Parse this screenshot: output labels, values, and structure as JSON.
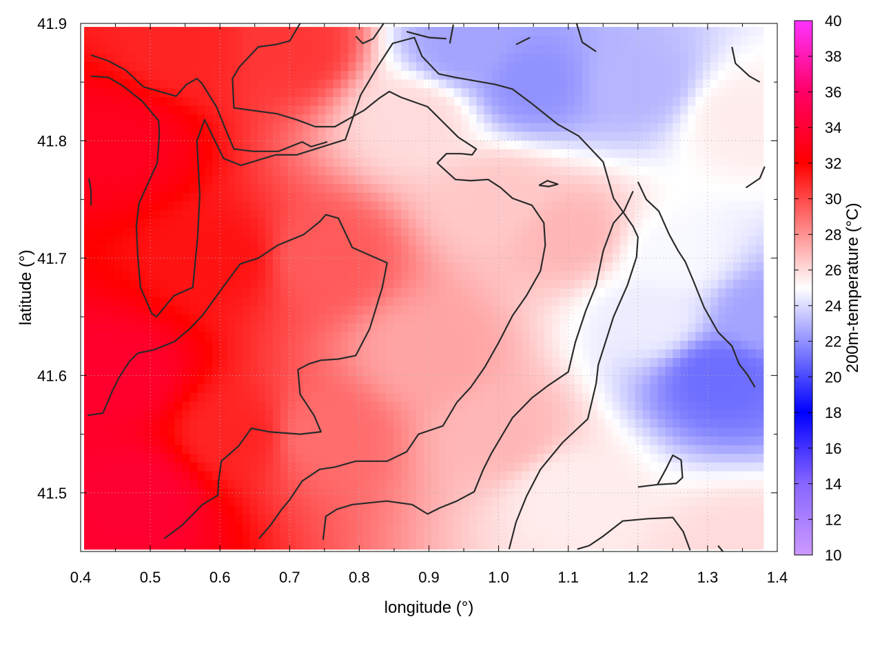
{
  "chart_data": {
    "type": "heatmap",
    "xlabel": "longitude (°)",
    "ylabel": "latitude (°)",
    "colorbar_label": "200m-temperature (°C)",
    "xlim": [
      0.4,
      1.4
    ],
    "ylim": [
      41.45,
      41.9
    ],
    "xticks": [
      0.4,
      0.5,
      0.6,
      0.7,
      0.8,
      0.9,
      1.0,
      1.1,
      1.2,
      1.3,
      1.4
    ],
    "yticks": [
      41.5,
      41.6,
      41.7,
      41.8,
      41.9
    ],
    "x_tick_labels": [
      "0.4",
      "0.5",
      "0.6",
      "0.7",
      "0.8",
      "0.9",
      "1.0",
      "1.1",
      "1.2",
      "1.3",
      "1.4"
    ],
    "y_tick_labels": [
      "41.5",
      "41.6",
      "41.7",
      "41.8",
      "41.9"
    ],
    "data_extent": {
      "lon": [
        0.405,
        1.38
      ],
      "lat": [
        41.452,
        41.897
      ]
    },
    "grid": true,
    "colorbar": {
      "range": [
        10,
        40
      ],
      "ticks": [
        "10",
        "12",
        "14",
        "16",
        "18",
        "20",
        "22",
        "24",
        "26",
        "28",
        "30",
        "32",
        "34",
        "36",
        "38",
        "40"
      ],
      "stops": [
        {
          "value": 10,
          "color": "#cc99ff"
        },
        {
          "value": 14,
          "color": "#8866ff"
        },
        {
          "value": 18,
          "color": "#0000ff"
        },
        {
          "value": 25,
          "color": "#ffffff"
        },
        {
          "value": 32,
          "color": "#ff0000"
        },
        {
          "value": 36,
          "color": "#ff0066"
        },
        {
          "value": 40,
          "color": "#ff33ff"
        }
      ]
    },
    "field_description": "Warm (30-34 °C) in the west and southwest, cooling eastward to about 21-23 °C in the northeast and east",
    "field_anchors": [
      {
        "lon": 0.45,
        "lat": 41.8,
        "t": 33.2
      },
      {
        "lon": 0.45,
        "lat": 41.6,
        "t": 33.8
      },
      {
        "lon": 0.48,
        "lat": 41.5,
        "t": 34.0
      },
      {
        "lon": 0.55,
        "lat": 41.88,
        "t": 31.0
      },
      {
        "lon": 0.6,
        "lat": 41.7,
        "t": 31.5
      },
      {
        "lon": 0.62,
        "lat": 41.55,
        "t": 31.0
      },
      {
        "lon": 0.7,
        "lat": 41.88,
        "t": 30.5
      },
      {
        "lon": 0.75,
        "lat": 41.7,
        "t": 29.5
      },
      {
        "lon": 0.75,
        "lat": 41.55,
        "t": 29.0
      },
      {
        "lon": 0.88,
        "lat": 41.82,
        "t": 26.0
      },
      {
        "lon": 0.9,
        "lat": 41.62,
        "t": 27.5
      },
      {
        "lon": 0.95,
        "lat": 41.88,
        "t": 22.5
      },
      {
        "lon": 1.0,
        "lat": 41.75,
        "t": 26.5
      },
      {
        "lon": 1.0,
        "lat": 41.55,
        "t": 27.0
      },
      {
        "lon": 1.05,
        "lat": 41.85,
        "t": 22.0
      },
      {
        "lon": 1.1,
        "lat": 41.72,
        "t": 27.0
      },
      {
        "lon": 1.1,
        "lat": 41.5,
        "t": 25.5
      },
      {
        "lon": 1.2,
        "lat": 41.85,
        "t": 23.0
      },
      {
        "lon": 1.22,
        "lat": 41.65,
        "t": 24.5
      },
      {
        "lon": 1.25,
        "lat": 41.7,
        "t": 24.8
      },
      {
        "lon": 1.32,
        "lat": 41.6,
        "t": 21.0
      },
      {
        "lon": 1.35,
        "lat": 41.45,
        "t": 26.0
      },
      {
        "lon": 1.35,
        "lat": 41.82,
        "t": 25.5
      },
      {
        "lon": 1.38,
        "lat": 41.65,
        "t": 22.5
      }
    ],
    "contours": [
      [
        [
          0.415,
          41.873
        ],
        [
          0.44,
          41.868
        ],
        [
          0.465,
          41.86
        ],
        [
          0.49,
          41.846
        ],
        [
          0.537,
          41.838
        ],
        [
          0.552,
          41.848
        ],
        [
          0.567,
          41.853
        ],
        [
          0.574,
          41.849
        ],
        [
          0.595,
          41.829
        ],
        [
          0.608,
          41.81
        ],
        [
          0.62,
          41.793
        ],
        [
          0.648,
          41.791
        ],
        [
          0.684,
          41.791
        ],
        [
          0.718,
          41.799
        ],
        [
          0.731,
          41.795
        ],
        [
          0.754,
          41.799
        ]
      ],
      [
        [
          0.415,
          41.855
        ],
        [
          0.44,
          41.854
        ],
        [
          0.46,
          41.847
        ],
        [
          0.488,
          41.834
        ],
        [
          0.512,
          41.817
        ],
        [
          0.513,
          41.805
        ],
        [
          0.51,
          41.781
        ],
        [
          0.484,
          41.747
        ],
        [
          0.48,
          41.728
        ],
        [
          0.482,
          41.702
        ],
        [
          0.486,
          41.675
        ],
        [
          0.502,
          41.653
        ],
        [
          0.509,
          41.65
        ],
        [
          0.534,
          41.668
        ],
        [
          0.561,
          41.675
        ],
        [
          0.568,
          41.718
        ],
        [
          0.571,
          41.754
        ],
        [
          0.567,
          41.8
        ],
        [
          0.578,
          41.818
        ],
        [
          0.605,
          41.785
        ],
        [
          0.63,
          41.779
        ],
        [
          0.68,
          41.788
        ],
        [
          0.71,
          41.788
        ],
        [
          0.78,
          41.801
        ],
        [
          0.802,
          41.839
        ],
        [
          0.825,
          41.862
        ],
        [
          0.848,
          41.883
        ],
        [
          0.879,
          41.888
        ],
        [
          0.89,
          41.872
        ],
        [
          0.914,
          41.857
        ],
        [
          0.938,
          41.854
        ],
        [
          0.995,
          41.848
        ],
        [
          1.02,
          41.844
        ],
        [
          1.047,
          41.832
        ],
        [
          1.085,
          41.814
        ],
        [
          1.115,
          41.804
        ],
        [
          1.15,
          41.782
        ],
        [
          1.165,
          41.751
        ],
        [
          1.193,
          41.727
        ],
        [
          1.2,
          41.718
        ],
        [
          1.198,
          41.701
        ],
        [
          1.185,
          41.677
        ],
        [
          1.165,
          41.65
        ],
        [
          1.143,
          41.609
        ],
        [
          1.14,
          41.593
        ],
        [
          1.128,
          41.563
        ],
        [
          1.092,
          41.543
        ],
        [
          1.06,
          41.52
        ],
        [
          1.04,
          41.497
        ],
        [
          1.025,
          41.475
        ],
        [
          1.015,
          41.452
        ]
      ],
      [
        [
          0.41,
          41.566
        ],
        [
          0.432,
          41.568
        ],
        [
          0.445,
          41.586
        ],
        [
          0.455,
          41.598
        ],
        [
          0.47,
          41.612
        ],
        [
          0.482,
          41.619
        ],
        [
          0.506,
          41.622
        ],
        [
          0.535,
          41.629
        ],
        [
          0.557,
          41.64
        ],
        [
          0.576,
          41.652
        ],
        [
          0.604,
          41.675
        ],
        [
          0.629,
          41.695
        ],
        [
          0.655,
          41.7
        ],
        [
          0.683,
          41.711
        ],
        [
          0.72,
          41.72
        ],
        [
          0.743,
          41.731
        ],
        [
          0.752,
          41.737
        ],
        [
          0.77,
          41.734
        ],
        [
          0.79,
          41.709
        ],
        [
          0.84,
          41.696
        ],
        [
          0.833,
          41.675
        ],
        [
          0.815,
          41.64
        ],
        [
          0.795,
          41.617
        ],
        [
          0.77,
          41.614
        ],
        [
          0.745,
          41.613
        ],
        [
          0.728,
          41.61
        ],
        [
          0.712,
          41.605
        ],
        [
          0.715,
          41.584
        ],
        [
          0.735,
          41.566
        ],
        [
          0.745,
          41.552
        ],
        [
          0.715,
          41.55
        ],
        [
          0.67,
          41.552
        ],
        [
          0.645,
          41.555
        ],
        [
          0.627,
          41.54
        ],
        [
          0.602,
          41.527
        ],
        [
          0.598,
          41.51
        ],
        [
          0.597,
          41.498
        ],
        [
          0.575,
          41.49
        ],
        [
          0.56,
          41.481
        ],
        [
          0.545,
          41.472
        ],
        [
          0.52,
          41.461
        ]
      ],
      [
        [
          0.656,
          41.461
        ],
        [
          0.672,
          41.472
        ],
        [
          0.69,
          41.487
        ],
        [
          0.7,
          41.494
        ],
        [
          0.718,
          41.51
        ],
        [
          0.743,
          41.52
        ],
        [
          0.765,
          41.522
        ],
        [
          0.795,
          41.527
        ],
        [
          0.84,
          41.527
        ],
        [
          0.868,
          41.535
        ],
        [
          0.885,
          41.55
        ],
        [
          0.92,
          41.557
        ],
        [
          0.94,
          41.577
        ],
        [
          0.96,
          41.59
        ],
        [
          0.98,
          41.607
        ],
        [
          1.0,
          41.628
        ],
        [
          1.02,
          41.651
        ],
        [
          1.04,
          41.668
        ],
        [
          1.06,
          41.689
        ],
        [
          1.067,
          41.711
        ],
        [
          1.065,
          41.73
        ],
        [
          1.048,
          41.745
        ],
        [
          1.02,
          41.751
        ],
        [
          1.003,
          41.76
        ],
        [
          0.985,
          41.767
        ],
        [
          0.96,
          41.766
        ],
        [
          0.938,
          41.767
        ],
        [
          0.912,
          41.781
        ],
        [
          0.925,
          41.789
        ],
        [
          0.946,
          41.789
        ],
        [
          0.962,
          41.788
        ],
        [
          0.968,
          41.793
        ],
        [
          0.942,
          41.803
        ],
        [
          0.898,
          41.829
        ],
        [
          0.86,
          41.837
        ],
        [
          0.843,
          41.842
        ],
        [
          0.828,
          41.836
        ],
        [
          0.807,
          41.826
        ],
        [
          0.78,
          41.817
        ],
        [
          0.765,
          41.812
        ],
        [
          0.737,
          41.812
        ],
        [
          0.71,
          41.818
        ],
        [
          0.682,
          41.823
        ],
        [
          0.62,
          41.828
        ],
        [
          0.618,
          41.853
        ],
        [
          0.628,
          41.863
        ],
        [
          0.655,
          41.88
        ],
        [
          0.68,
          41.882
        ],
        [
          0.7,
          41.885
        ],
        [
          0.715,
          41.9
        ]
      ],
      [
        [
          0.748,
          41.46
        ],
        [
          0.752,
          41.48
        ],
        [
          0.768,
          41.486
        ],
        [
          0.79,
          41.49
        ],
        [
          0.839,
          41.493
        ],
        [
          0.876,
          41.49
        ],
        [
          0.898,
          41.482
        ],
        [
          0.915,
          41.487
        ],
        [
          0.94,
          41.493
        ],
        [
          0.965,
          41.501
        ],
        [
          0.978,
          41.52
        ],
        [
          0.99,
          41.534
        ],
        [
          1.002,
          41.546
        ],
        [
          1.02,
          41.564
        ],
        [
          1.048,
          41.581
        ],
        [
          1.07,
          41.591
        ],
        [
          1.1,
          41.603
        ],
        [
          1.11,
          41.628
        ],
        [
          1.125,
          41.655
        ],
        [
          1.14,
          41.677
        ],
        [
          1.15,
          41.706
        ],
        [
          1.165,
          41.73
        ],
        [
          1.18,
          41.74
        ],
        [
          1.193,
          41.757
        ]
      ],
      [
        [
          1.113,
          41.452
        ],
        [
          1.13,
          41.455
        ],
        [
          1.15,
          41.463
        ],
        [
          1.178,
          41.476
        ],
        [
          1.215,
          41.478
        ],
        [
          1.25,
          41.479
        ],
        [
          1.265,
          41.467
        ],
        [
          1.275,
          41.451
        ]
      ],
      [
        [
          1.2,
          41.505
        ],
        [
          1.228,
          41.507
        ],
        [
          1.255,
          41.508
        ],
        [
          1.264,
          41.513
        ],
        [
          1.262,
          41.528
        ],
        [
          1.25,
          41.532
        ],
        [
          1.24,
          41.52
        ],
        [
          1.228,
          41.507
        ]
      ],
      [
        [
          1.2,
          41.765
        ],
        [
          1.212,
          41.75
        ],
        [
          1.23,
          41.74
        ],
        [
          1.245,
          41.72
        ],
        [
          1.258,
          41.706
        ],
        [
          1.268,
          41.697
        ],
        [
          1.28,
          41.68
        ],
        [
          1.295,
          41.658
        ],
        [
          1.315,
          41.637
        ],
        [
          1.335,
          41.625
        ],
        [
          1.345,
          41.61
        ],
        [
          1.358,
          41.6
        ],
        [
          1.368,
          41.59
        ]
      ],
      [
        [
          1.335,
          41.88
        ],
        [
          1.34,
          41.866
        ],
        [
          1.36,
          41.855
        ],
        [
          1.375,
          41.85
        ]
      ],
      [
        [
          1.355,
          41.76
        ],
        [
          1.375,
          41.768
        ],
        [
          1.382,
          41.778
        ]
      ],
      [
        [
          1.112,
          41.9
        ],
        [
          1.12,
          41.884
        ],
        [
          1.14,
          41.876
        ]
      ],
      [
        [
          0.835,
          41.9
        ],
        [
          0.82,
          41.887
        ],
        [
          0.805,
          41.883
        ],
        [
          0.795,
          41.889
        ]
      ],
      [
        [
          0.868,
          41.893
        ],
        [
          0.9,
          41.888
        ],
        [
          0.925,
          41.887
        ]
      ],
      [
        [
          0.93,
          41.883
        ],
        [
          0.935,
          41.899
        ]
      ],
      [
        [
          1.025,
          41.882
        ],
        [
          1.045,
          41.888
        ]
      ],
      [
        [
          0.412,
          41.768
        ],
        [
          0.415,
          41.757
        ],
        [
          0.415,
          41.745
        ]
      ],
      [
        [
          1.058,
          41.762
        ],
        [
          1.072,
          41.761
        ],
        [
          1.085,
          41.763
        ],
        [
          1.07,
          41.766
        ],
        [
          1.058,
          41.762
        ]
      ],
      [
        [
          1.315,
          41.455
        ],
        [
          1.322,
          41.45
        ]
      ]
    ]
  }
}
